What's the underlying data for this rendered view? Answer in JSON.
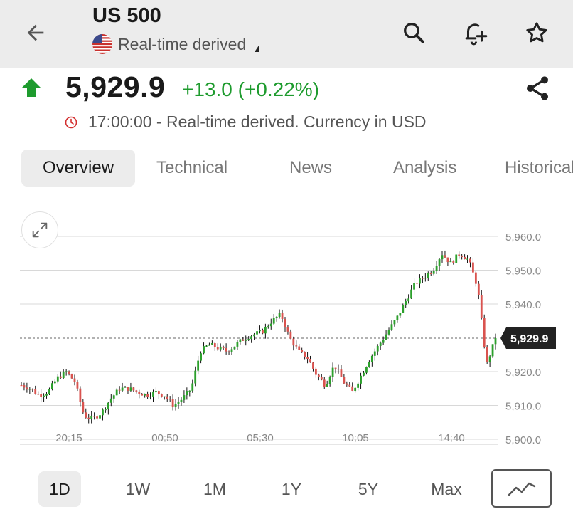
{
  "header": {
    "title": "US 500",
    "subtitle": "Real-time derived",
    "back_icon": "arrow-left-icon",
    "search_icon": "search-icon",
    "alert_icon": "add-alert-bell-icon",
    "watchlist_icon": "star-icon"
  },
  "quote": {
    "price": "5,929.9",
    "change": "+13.0 (+0.22%)",
    "direction": "up",
    "time_info": "17:00:00 - Real-time derived. Currency in USD",
    "up_color": "#1e9b2e",
    "down_color": "#d32f2f"
  },
  "tabs": [
    {
      "label": "Overview",
      "active": true
    },
    {
      "label": "Technical",
      "active": false
    },
    {
      "label": "News",
      "active": false
    },
    {
      "label": "Analysis",
      "active": false
    },
    {
      "label": "Historical",
      "active": false
    }
  ],
  "chart_data": {
    "type": "candlestick",
    "x_tick_labels": [
      "20:15",
      "00:50",
      "05:30",
      "10:05",
      "14:40"
    ],
    "y_tick_labels": [
      "5,960.0",
      "5,950.0",
      "5,940.0",
      "5,930.0",
      "5,920.0",
      "5,910.0",
      "5,900.0"
    ],
    "ylim": [
      5900,
      5960
    ],
    "last_price": 5929.9,
    "last_price_label": "5,929.9",
    "grid": true,
    "approx_close_path": [
      5916,
      5915,
      5913,
      5914,
      5918,
      5920,
      5917,
      5907,
      5906,
      5908,
      5912,
      5915,
      5915,
      5914,
      5913,
      5914,
      5913,
      5910,
      5912,
      5915,
      5926,
      5928,
      5927,
      5926,
      5928,
      5930,
      5931,
      5932,
      5935,
      5937,
      5930,
      5926,
      5924,
      5919,
      5916,
      5922,
      5917,
      5914,
      5919,
      5924,
      5928,
      5932,
      5936,
      5941,
      5946,
      5948,
      5950,
      5955,
      5952,
      5955,
      5953,
      5945,
      5922,
      5929.9
    ]
  },
  "ranges": [
    {
      "label": "1D",
      "active": true
    },
    {
      "label": "1W",
      "active": false
    },
    {
      "label": "1M",
      "active": false
    },
    {
      "label": "1Y",
      "active": false
    },
    {
      "label": "5Y",
      "active": false
    },
    {
      "label": "Max",
      "active": false
    }
  ],
  "chart_type_icon": "line-chart-icon",
  "expand_icon": "expand-icon",
  "share_icon": "share-icon",
  "clock_icon": "clock-icon",
  "flag_icon": "us-flag-icon"
}
